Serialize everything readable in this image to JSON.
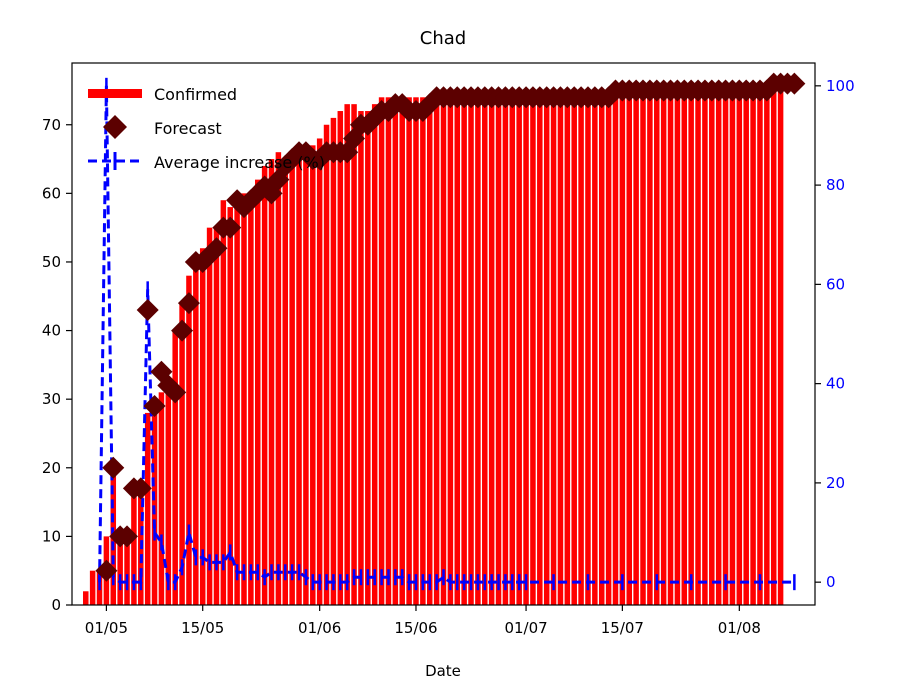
{
  "chart_data": {
    "type": "bar",
    "title": "Chad",
    "xlabel": "Date",
    "ylabel": "",
    "y2label": "",
    "ylim": [
      0,
      79
    ],
    "y2lim": [
      -4.6,
      104.6
    ],
    "x_tick_labels": [
      "01/05",
      "15/05",
      "01/06",
      "15/06",
      "01/07",
      "15/07",
      "01/08"
    ],
    "x_tick_dates": [
      "2020-05-01",
      "2020-05-15",
      "2020-06-01",
      "2020-06-15",
      "2020-07-01",
      "2020-07-15",
      "2020-08-01"
    ],
    "y_ticks": [
      0,
      10,
      20,
      30,
      40,
      50,
      60,
      70
    ],
    "y2_ticks": [
      0,
      20,
      40,
      60,
      80,
      100
    ],
    "xlim": [
      "2020-04-26",
      "2020-08-12"
    ],
    "legend": {
      "position": "upper-left",
      "entries": [
        "Confirmed",
        "Forecast",
        "Average increase (%)"
      ]
    },
    "colors": {
      "confirmed": "#ff0000",
      "forecast": "#5c0000",
      "average": "#0000ff",
      "axis2_ticks": "#0000ff"
    },
    "series": [
      {
        "name": "Confirmed",
        "kind": "bar",
        "start_date": "2020-04-28",
        "values": [
          2,
          5,
          5,
          10,
          20,
          10,
          10,
          17,
          17,
          28,
          29,
          31,
          32,
          40,
          44,
          48,
          50,
          52,
          55,
          55,
          59,
          58,
          59,
          60,
          60,
          62,
          64,
          65,
          66,
          65,
          65,
          66,
          66,
          67,
          68,
          70,
          71,
          72,
          73,
          73,
          72,
          72,
          73,
          74,
          74,
          74,
          74,
          74,
          74,
          74,
          74,
          74,
          74,
          74,
          74,
          74,
          74,
          74,
          74,
          74,
          74,
          74,
          74,
          74,
          74,
          74,
          74,
          74,
          74,
          74,
          74,
          74,
          74,
          74,
          74,
          74,
          74,
          74,
          74,
          74,
          74,
          74,
          74,
          74,
          74,
          74,
          74,
          74,
          74,
          74,
          74,
          74,
          74,
          74,
          74,
          74,
          74,
          74,
          74,
          74,
          75,
          76
        ]
      },
      {
        "name": "Forecast",
        "kind": "scatter",
        "points": [
          [
            "2020-05-01",
            5
          ],
          [
            "2020-05-02",
            20
          ],
          [
            "2020-05-03",
            10
          ],
          [
            "2020-05-04",
            10
          ],
          [
            "2020-05-05",
            17
          ],
          [
            "2020-05-06",
            17
          ],
          [
            "2020-05-07",
            43
          ],
          [
            "2020-05-08",
            29
          ],
          [
            "2020-05-09",
            34
          ],
          [
            "2020-05-10",
            32
          ],
          [
            "2020-05-11",
            31
          ],
          [
            "2020-05-12",
            40
          ],
          [
            "2020-05-13",
            44
          ],
          [
            "2020-05-14",
            50
          ],
          [
            "2020-05-15",
            50
          ],
          [
            "2020-05-16",
            51
          ],
          [
            "2020-05-17",
            52
          ],
          [
            "2020-05-18",
            55
          ],
          [
            "2020-05-19",
            55
          ],
          [
            "2020-05-20",
            59
          ],
          [
            "2020-05-21",
            58
          ],
          [
            "2020-05-22",
            59
          ],
          [
            "2020-05-23",
            60
          ],
          [
            "2020-05-24",
            61
          ],
          [
            "2020-05-25",
            60
          ],
          [
            "2020-05-26",
            62
          ],
          [
            "2020-05-27",
            64
          ],
          [
            "2020-05-28",
            65
          ],
          [
            "2020-05-29",
            66
          ],
          [
            "2020-05-30",
            66
          ],
          [
            "2020-05-31",
            65
          ],
          [
            "2020-06-01",
            65
          ],
          [
            "2020-06-02",
            66
          ],
          [
            "2020-06-03",
            66
          ],
          [
            "2020-06-04",
            66
          ],
          [
            "2020-06-05",
            66
          ],
          [
            "2020-06-06",
            68
          ],
          [
            "2020-06-07",
            70
          ],
          [
            "2020-06-08",
            70
          ],
          [
            "2020-06-09",
            71
          ],
          [
            "2020-06-10",
            72
          ],
          [
            "2020-06-11",
            72
          ],
          [
            "2020-06-12",
            73
          ],
          [
            "2020-06-13",
            73
          ],
          [
            "2020-06-14",
            72
          ],
          [
            "2020-06-15",
            72
          ],
          [
            "2020-06-16",
            72
          ],
          [
            "2020-06-17",
            73
          ],
          [
            "2020-06-18",
            74
          ],
          [
            "2020-06-19",
            74
          ],
          [
            "2020-06-20",
            74
          ],
          [
            "2020-06-21",
            74
          ],
          [
            "2020-06-22",
            74
          ],
          [
            "2020-06-23",
            74
          ],
          [
            "2020-06-24",
            74
          ],
          [
            "2020-06-25",
            74
          ],
          [
            "2020-06-26",
            74
          ],
          [
            "2020-06-27",
            74
          ],
          [
            "2020-06-28",
            74
          ],
          [
            "2020-06-29",
            74
          ],
          [
            "2020-06-30",
            74
          ],
          [
            "2020-07-01",
            74
          ],
          [
            "2020-07-02",
            74
          ],
          [
            "2020-07-03",
            74
          ],
          [
            "2020-07-04",
            74
          ],
          [
            "2020-07-05",
            74
          ],
          [
            "2020-07-06",
            74
          ],
          [
            "2020-07-07",
            74
          ],
          [
            "2020-07-08",
            74
          ],
          [
            "2020-07-09",
            74
          ],
          [
            "2020-07-10",
            74
          ],
          [
            "2020-07-11",
            74
          ],
          [
            "2020-07-12",
            74
          ],
          [
            "2020-07-13",
            74
          ],
          [
            "2020-07-14",
            75
          ],
          [
            "2020-07-15",
            75
          ],
          [
            "2020-07-16",
            75
          ],
          [
            "2020-07-17",
            75
          ],
          [
            "2020-07-18",
            75
          ],
          [
            "2020-07-19",
            75
          ],
          [
            "2020-07-20",
            75
          ],
          [
            "2020-07-21",
            75
          ],
          [
            "2020-07-22",
            75
          ],
          [
            "2020-07-23",
            75
          ],
          [
            "2020-07-24",
            75
          ],
          [
            "2020-07-25",
            75
          ],
          [
            "2020-07-26",
            75
          ],
          [
            "2020-07-27",
            75
          ],
          [
            "2020-07-28",
            75
          ],
          [
            "2020-07-29",
            75
          ],
          [
            "2020-07-30",
            75
          ],
          [
            "2020-07-31",
            75
          ],
          [
            "2020-08-01",
            75
          ],
          [
            "2020-08-02",
            75
          ],
          [
            "2020-08-03",
            75
          ],
          [
            "2020-08-04",
            75
          ],
          [
            "2020-08-05",
            75
          ],
          [
            "2020-08-06",
            76
          ],
          [
            "2020-08-07",
            76
          ],
          [
            "2020-08-08",
            76
          ],
          [
            "2020-08-09",
            76
          ]
        ]
      },
      {
        "name": "Average increase (%)",
        "kind": "line",
        "axis": "right",
        "points": [
          [
            "2020-04-30",
            0
          ],
          [
            "2020-05-01",
            100
          ],
          [
            "2020-05-02",
            1
          ],
          [
            "2020-05-03",
            0
          ],
          [
            "2020-05-04",
            0
          ],
          [
            "2020-05-05",
            0
          ],
          [
            "2020-05-06",
            0
          ],
          [
            "2020-05-07",
            59
          ],
          [
            "2020-05-08",
            10
          ],
          [
            "2020-05-09",
            8
          ],
          [
            "2020-05-10",
            0
          ],
          [
            "2020-05-11",
            0
          ],
          [
            "2020-05-12",
            3
          ],
          [
            "2020-05-13",
            10
          ],
          [
            "2020-05-14",
            5
          ],
          [
            "2020-05-15",
            5
          ],
          [
            "2020-05-16",
            4
          ],
          [
            "2020-05-17",
            4
          ],
          [
            "2020-05-18",
            4
          ],
          [
            "2020-05-19",
            6
          ],
          [
            "2020-05-20",
            2
          ],
          [
            "2020-05-21",
            2
          ],
          [
            "2020-05-22",
            2
          ],
          [
            "2020-05-23",
            2
          ],
          [
            "2020-05-24",
            1
          ],
          [
            "2020-05-25",
            2
          ],
          [
            "2020-05-26",
            2
          ],
          [
            "2020-05-27",
            2
          ],
          [
            "2020-05-28",
            2
          ],
          [
            "2020-05-29",
            2
          ],
          [
            "2020-05-30",
            1
          ],
          [
            "2020-05-31",
            0
          ],
          [
            "2020-06-01",
            0
          ],
          [
            "2020-06-02",
            0
          ],
          [
            "2020-06-03",
            0
          ],
          [
            "2020-06-04",
            0
          ],
          [
            "2020-06-05",
            0
          ],
          [
            "2020-06-06",
            1
          ],
          [
            "2020-06-07",
            1
          ],
          [
            "2020-06-08",
            1
          ],
          [
            "2020-06-09",
            1
          ],
          [
            "2020-06-10",
            1
          ],
          [
            "2020-06-11",
            1
          ],
          [
            "2020-06-12",
            1
          ],
          [
            "2020-06-13",
            1
          ],
          [
            "2020-06-14",
            0
          ],
          [
            "2020-06-15",
            0
          ],
          [
            "2020-06-16",
            0
          ],
          [
            "2020-06-17",
            0
          ],
          [
            "2020-06-18",
            0
          ],
          [
            "2020-06-19",
            1
          ],
          [
            "2020-06-20",
            0
          ],
          [
            "2020-06-21",
            0
          ],
          [
            "2020-06-22",
            0
          ],
          [
            "2020-06-23",
            0
          ],
          [
            "2020-06-24",
            0
          ],
          [
            "2020-06-25",
            0
          ],
          [
            "2020-06-26",
            0
          ],
          [
            "2020-06-27",
            0
          ],
          [
            "2020-06-28",
            0
          ],
          [
            "2020-06-29",
            0
          ],
          [
            "2020-06-30",
            0
          ],
          [
            "2020-07-01",
            0
          ],
          [
            "2020-07-05",
            0
          ],
          [
            "2020-07-10",
            0
          ],
          [
            "2020-07-15",
            0
          ],
          [
            "2020-07-20",
            0
          ],
          [
            "2020-07-25",
            0
          ],
          [
            "2020-07-30",
            0
          ],
          [
            "2020-08-04",
            0
          ],
          [
            "2020-08-09",
            0
          ]
        ]
      }
    ]
  }
}
